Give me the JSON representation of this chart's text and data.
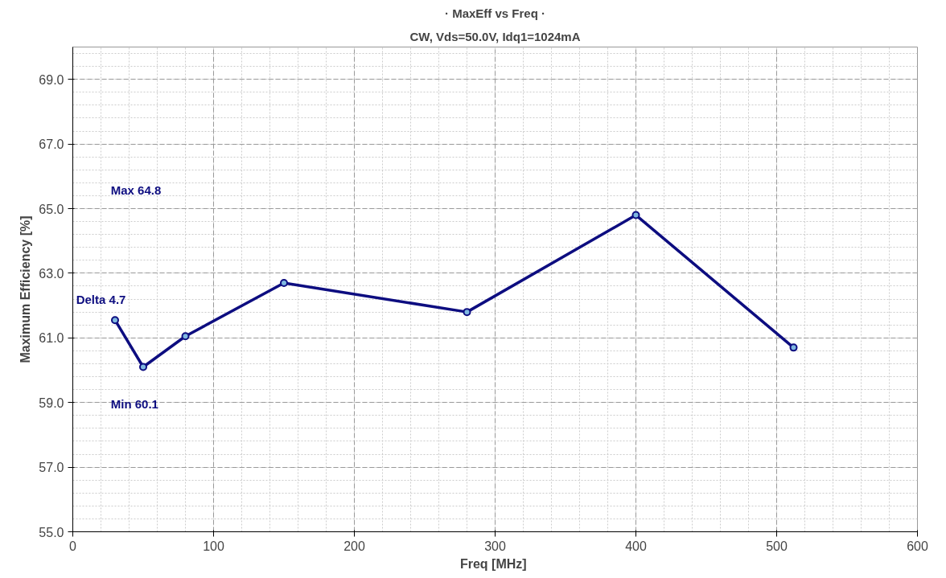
{
  "chart_data": {
    "type": "line",
    "title": "· MaxEff vs Freq ·",
    "subtitle": "CW, Vds=50.0V, Idq1=1024mA",
    "xlabel": "Freq  [MHz]",
    "ylabel": "Maximum Efficiency [%]",
    "x": [
      30,
      50,
      80,
      150,
      280,
      400,
      512
    ],
    "series": [
      {
        "color": "#0d0d80",
        "values": [
          61.55,
          60.1,
          61.05,
          62.7,
          61.8,
          64.8,
          60.7
        ]
      }
    ],
    "xlim": [
      0,
      600
    ],
    "xticks": [
      0,
      100,
      200,
      300,
      400,
      500,
      600
    ],
    "ylim": [
      55,
      70
    ],
    "yticks": [
      {
        "value": 55,
        "label": "55.0"
      },
      {
        "value": 57,
        "label": "57.0"
      },
      {
        "value": 59,
        "label": "59.0"
      },
      {
        "value": 61,
        "label": "61.0"
      },
      {
        "value": 63,
        "label": "63.0"
      },
      {
        "value": 65,
        "label": "65.0"
      },
      {
        "value": 67,
        "label": "67.0"
      },
      {
        "value": 69,
        "label": "69.0"
      }
    ],
    "annotations": [
      "Max 64.8",
      "Delta 4.7",
      "Min 60.1"
    ],
    "grid": true,
    "marker": "circle",
    "line_style": "solid"
  }
}
